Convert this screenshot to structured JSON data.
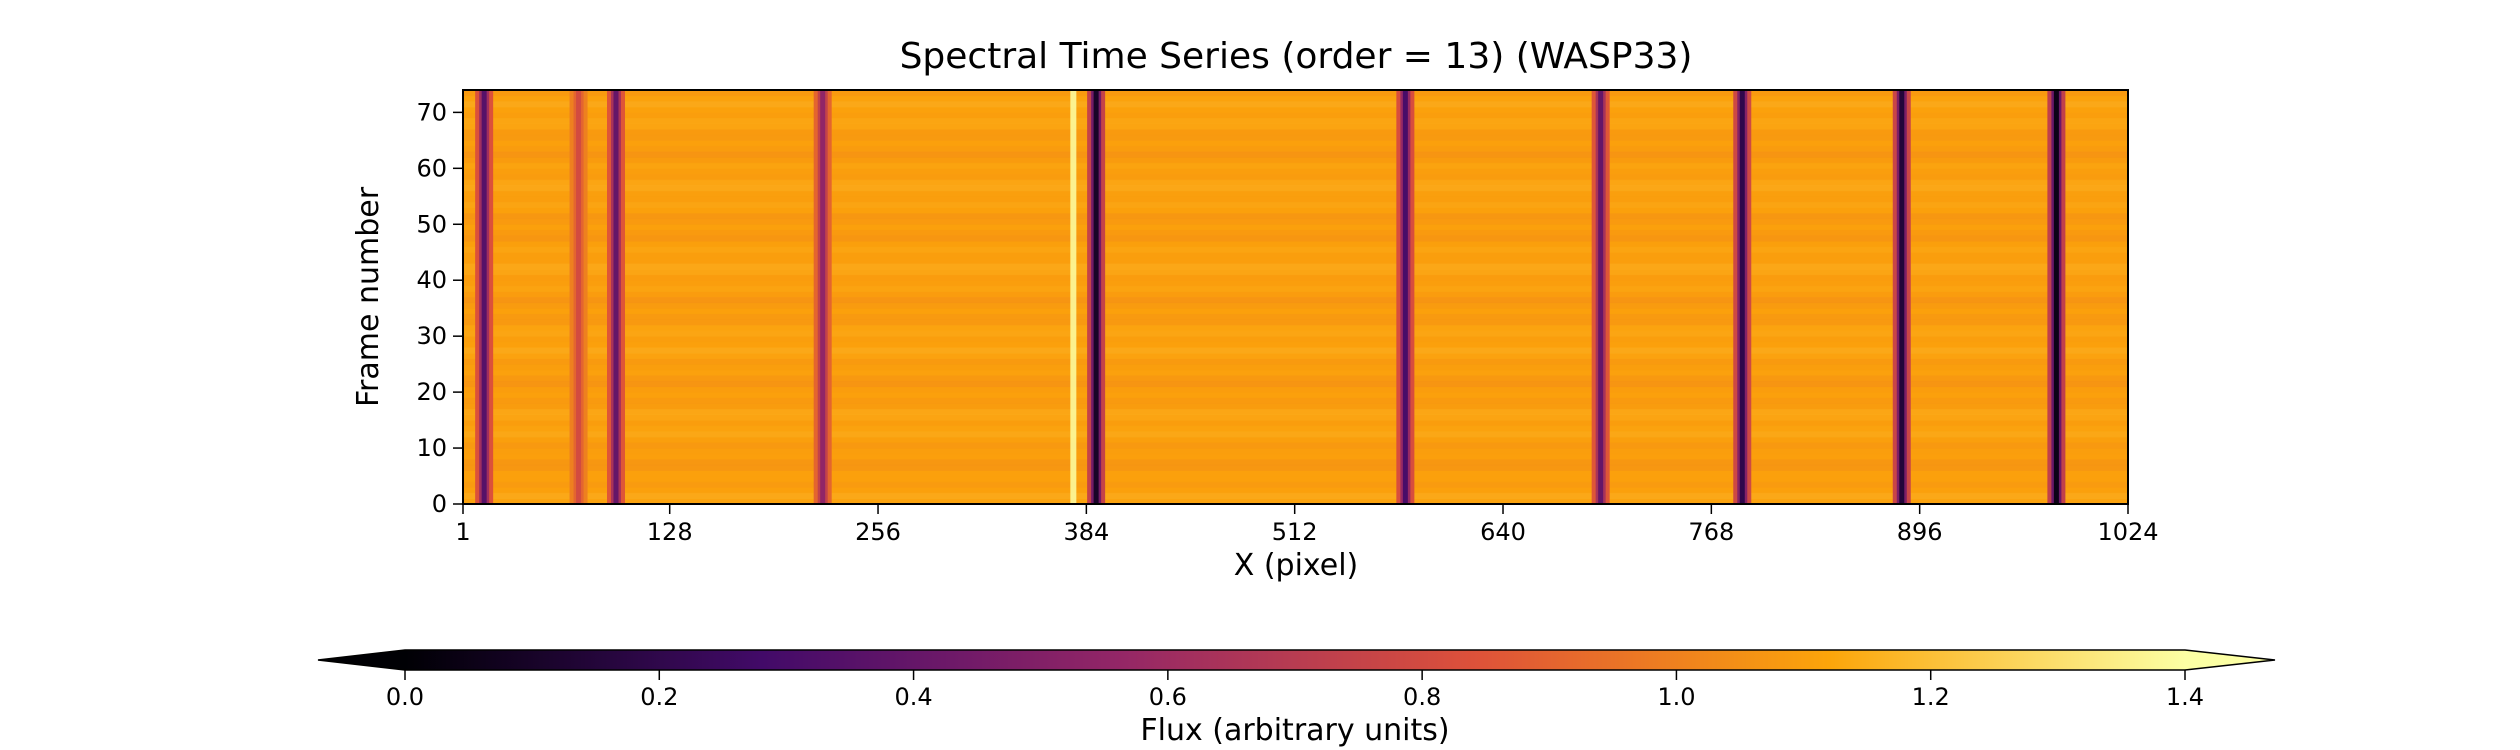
{
  "chart_data": {
    "type": "heatmap",
    "title": "Spectral Time Series (order = 13) (WASP33)",
    "xlabel": "X (pixel)",
    "ylabel": "Frame number",
    "xlim": [
      1,
      1024
    ],
    "ylim": [
      0,
      74
    ],
    "xticks": [
      1,
      128,
      256,
      384,
      512,
      640,
      768,
      896,
      1024
    ],
    "yticks": [
      0,
      10,
      20,
      30,
      40,
      50,
      60,
      70
    ],
    "grid": false,
    "colormap": "inferno",
    "colormap_stops": [
      "#000004",
      "#420a68",
      "#932667",
      "#dd513a",
      "#fca50a",
      "#fcffa4"
    ],
    "continuum_flux": 1.1,
    "absorption_lines": [
      {
        "x": 14,
        "depth": 0.75
      },
      {
        "x": 72,
        "depth": 0.3
      },
      {
        "x": 95,
        "depth": 0.7
      },
      {
        "x": 222,
        "depth": 0.55
      },
      {
        "x": 390,
        "depth": 1.0
      },
      {
        "x": 580,
        "depth": 0.8
      },
      {
        "x": 700,
        "depth": 0.7
      },
      {
        "x": 787,
        "depth": 0.9
      },
      {
        "x": 885,
        "depth": 0.95
      },
      {
        "x": 980,
        "depth": 1.05
      }
    ],
    "bright_feature_x": 376,
    "colorbar": {
      "label": "Flux (arbitrary units)",
      "range": [
        0.0,
        1.4
      ],
      "ticks": [
        0.0,
        0.2,
        0.4,
        0.6,
        0.8,
        1.0,
        1.2,
        1.4
      ],
      "extend": "both",
      "orientation": "horizontal"
    }
  }
}
